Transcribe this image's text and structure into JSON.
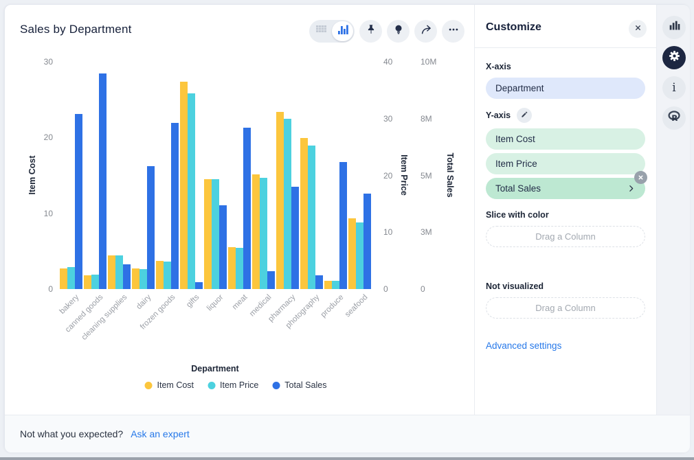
{
  "chart_panel": {
    "toolbar": {
      "view_toggle": [
        "table-view",
        "chart-view"
      ],
      "buttons": [
        "pin",
        "insights",
        "share",
        "more"
      ]
    }
  },
  "chart_data": {
    "type": "bar",
    "title": "Sales by Department",
    "xlabel": "Department",
    "grid": false,
    "legend_position": "bottom",
    "categories": [
      "bakery",
      "canned goods",
      "cleaning supplies",
      "dairy",
      "frozen goods",
      "gifts",
      "liquor",
      "meat",
      "medical",
      "pharmacy",
      "photography",
      "produce",
      "seafood"
    ],
    "series": [
      {
        "name": "Item Cost",
        "color": "#FCC63D",
        "axis_side": "left",
        "axis_max": 30,
        "ticks": [
          "30",
          "20",
          "10",
          "0"
        ],
        "values": [
          2.7,
          1.8,
          4.4,
          2.7,
          3.7,
          27.4,
          14.5,
          5.5,
          15.1,
          23.4,
          19.9,
          1.1,
          9.3
        ]
      },
      {
        "name": "Item Price",
        "color": "#4CD1DF",
        "axis_side": "right",
        "axis_max": 40,
        "ticks": [
          "40",
          "30",
          "20",
          "10",
          "0"
        ],
        "values": [
          3.9,
          2.5,
          5.9,
          3.5,
          4.8,
          34.4,
          19.3,
          7.3,
          19.6,
          30,
          25.3,
          1.5,
          11.7
        ]
      },
      {
        "name": "Total Sales",
        "color": "#2E71E5",
        "axis_side": "right",
        "axis_max": 10000000,
        "ticks": [
          "10M",
          "8M",
          "5M",
          "3M",
          "0"
        ],
        "values": [
          7700000,
          9500000,
          1100000,
          5400000,
          7300000,
          300000,
          3700000,
          7100000,
          800000,
          4500000,
          600000,
          5600000,
          4200000
        ]
      }
    ]
  },
  "customize_panel": {
    "title": "Customize",
    "x_axis_label": "X-axis",
    "x_axis_value": "Department",
    "y_axis_label": "Y-axis",
    "y_axis_values": [
      "Item Cost",
      "Item Price",
      "Total Sales"
    ],
    "y_axis_active_index": 2,
    "slice_label": "Slice with color",
    "slice_placeholder": "Drag a Column",
    "not_visualized_label": "Not visualized",
    "not_visualized_placeholder": "Drag a Column",
    "advanced_link": "Advanced settings"
  },
  "right_sidebar": {
    "icons": [
      "bar-chart",
      "settings",
      "info",
      "r-logo"
    ],
    "active_icon": "settings"
  },
  "footer": {
    "text": "Not what you expected?",
    "link_label": "Ask an expert"
  },
  "colors": {
    "series_yellow": "#FCC63D",
    "series_cyan": "#4CD1DF",
    "series_blue": "#2E71E5",
    "link_blue": "#2678E9",
    "pill_blue_bg": "#DFE8FB",
    "pill_green_bg": "#D8F1E4",
    "pill_green_active_bg": "#BDE8D2",
    "dark_icon_bg": "#1D2742"
  }
}
